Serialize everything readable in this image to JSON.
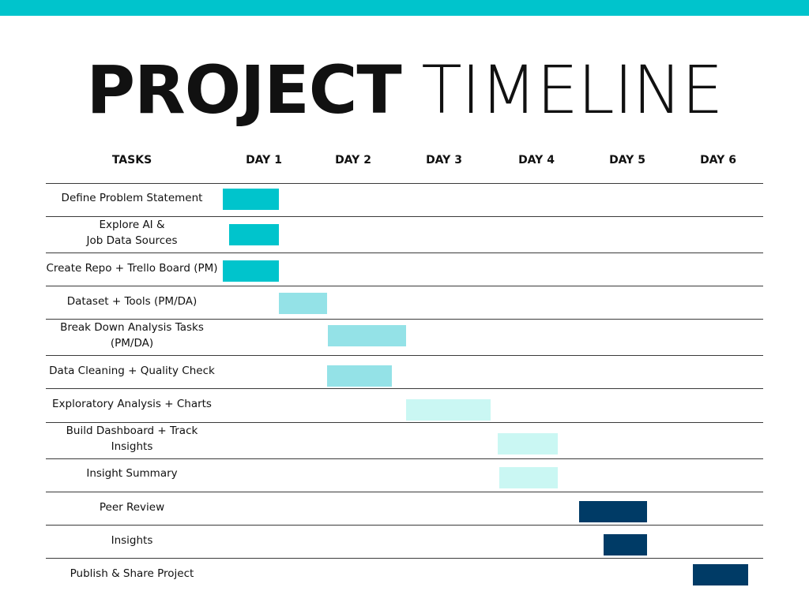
{
  "colors": {
    "top_bar": "#00C4CC",
    "phase1": "#00C4CC",
    "phase2": "#94E2E7",
    "phase3": "#CAF7F3",
    "phase4": "#003B66"
  },
  "title": {
    "bold": "PROJECT",
    "light": "TIMELINE"
  },
  "chart_data": {
    "type": "gantt",
    "headers": {
      "tasks": "TASKS",
      "days": [
        "DAY 1",
        "DAY 2",
        "DAY 3",
        "DAY 4",
        "DAY 5",
        "DAY 6"
      ]
    },
    "tasks": [
      {
        "label": [
          "Define Problem Statement"
        ],
        "start": 0.0,
        "end": 0.62,
        "color": "phase1"
      },
      {
        "label": [
          "Explore AI &",
          "Job Data Sources"
        ],
        "start": 0.07,
        "end": 0.62,
        "color": "phase1"
      },
      {
        "label": [
          "Create Repo + Trello Board (PM)"
        ],
        "start": 0.0,
        "end": 0.62,
        "color": "phase1"
      },
      {
        "label": [
          "Dataset + Tools (PM/DA)"
        ],
        "start": 0.62,
        "end": 1.15,
        "color": "phase2"
      },
      {
        "label": [
          "Break Down Analysis Tasks",
          "(PM/DA)"
        ],
        "start": 1.16,
        "end": 2.02,
        "color": "phase2"
      },
      {
        "label": [
          "Data Cleaning + Quality Check"
        ],
        "start": 1.15,
        "end": 1.86,
        "color": "phase2"
      },
      {
        "label": [
          "Exploratory Analysis + Charts"
        ],
        "start": 2.02,
        "end": 2.95,
        "color": "phase3"
      },
      {
        "label": [
          "Build Dashboard + Track",
          "Insights"
        ],
        "start": 3.03,
        "end": 3.69,
        "color": "phase3"
      },
      {
        "label": [
          "Insight Summary"
        ],
        "start": 3.05,
        "end": 3.69,
        "color": "phase3"
      },
      {
        "label": [
          "Peer Review"
        ],
        "start": 3.93,
        "end": 4.68,
        "color": "phase4"
      },
      {
        "label": [
          "Insights"
        ],
        "start": 4.2,
        "end": 4.68,
        "color": "phase4"
      },
      {
        "label": [
          "Publish & Share Project"
        ],
        "start": 5.18,
        "end": 5.79,
        "color": "phase4"
      }
    ]
  }
}
